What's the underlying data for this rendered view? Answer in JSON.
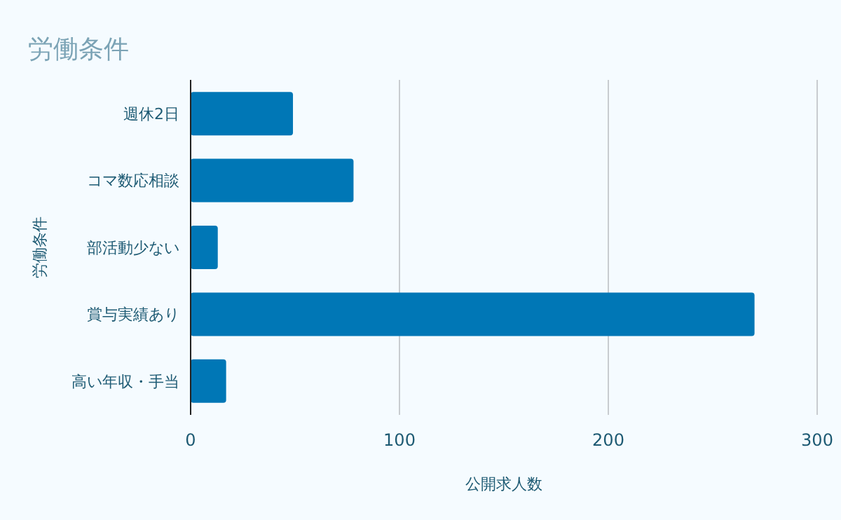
{
  "chart_data": {
    "type": "bar",
    "orientation": "horizontal",
    "title": "労働条件",
    "xlabel": "公開求人数",
    "ylabel": "労働条件",
    "categories": [
      "週休2日",
      "コマ数応相談",
      "部活動少ない",
      "賞与実績あり",
      "高い年収・手当"
    ],
    "values": [
      49,
      78,
      13,
      270,
      17
    ],
    "color": "#0077b6",
    "xlim": [
      0,
      300
    ],
    "xticks": [
      0,
      100,
      200,
      300
    ],
    "grid": "x"
  }
}
